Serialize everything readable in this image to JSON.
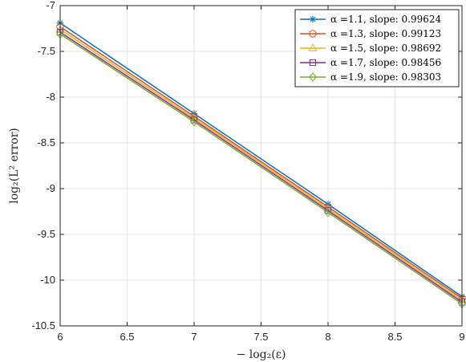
{
  "chart_data": {
    "type": "line",
    "title": "",
    "xlabel": "− log₂(ε)",
    "ylabel": "log₂(L² error)",
    "xlim": [
      6,
      9
    ],
    "ylim": [
      -10.5,
      -7
    ],
    "xticks": [
      "6",
      "6.5",
      "7",
      "7.5",
      "8",
      "8.5",
      "9"
    ],
    "yticks": [
      "-7",
      "-7.5",
      "-8",
      "-8.5",
      "-9",
      "-9.5",
      "-10",
      "-10.5"
    ],
    "grid": true,
    "legend_position": "top-right",
    "x": [
      6,
      7,
      8,
      9
    ],
    "series": [
      {
        "name": "α =1.1, slope: 0.99624",
        "color": "#0072BD",
        "marker": "asterisk",
        "values": [
          -7.19,
          -8.18,
          -9.17,
          -10.18
        ]
      },
      {
        "name": "α =1.3, slope: 0.99123",
        "color": "#D95319",
        "marker": "circle",
        "values": [
          -7.23,
          -8.21,
          -9.2,
          -10.2
        ]
      },
      {
        "name": "α =1.5, slope: 0.98692",
        "color": "#EDB120",
        "marker": "triangle",
        "values": [
          -7.26,
          -8.23,
          -9.22,
          -10.22
        ]
      },
      {
        "name": "α =1.7, slope: 0.98456",
        "color": "#7E2F8E",
        "marker": "square",
        "values": [
          -7.29,
          -8.25,
          -9.24,
          -10.24
        ]
      },
      {
        "name": "α =1.9, slope: 0.98303",
        "color": "#77AC30",
        "marker": "diamond",
        "values": [
          -7.31,
          -8.27,
          -9.26,
          -10.26
        ]
      }
    ]
  }
}
